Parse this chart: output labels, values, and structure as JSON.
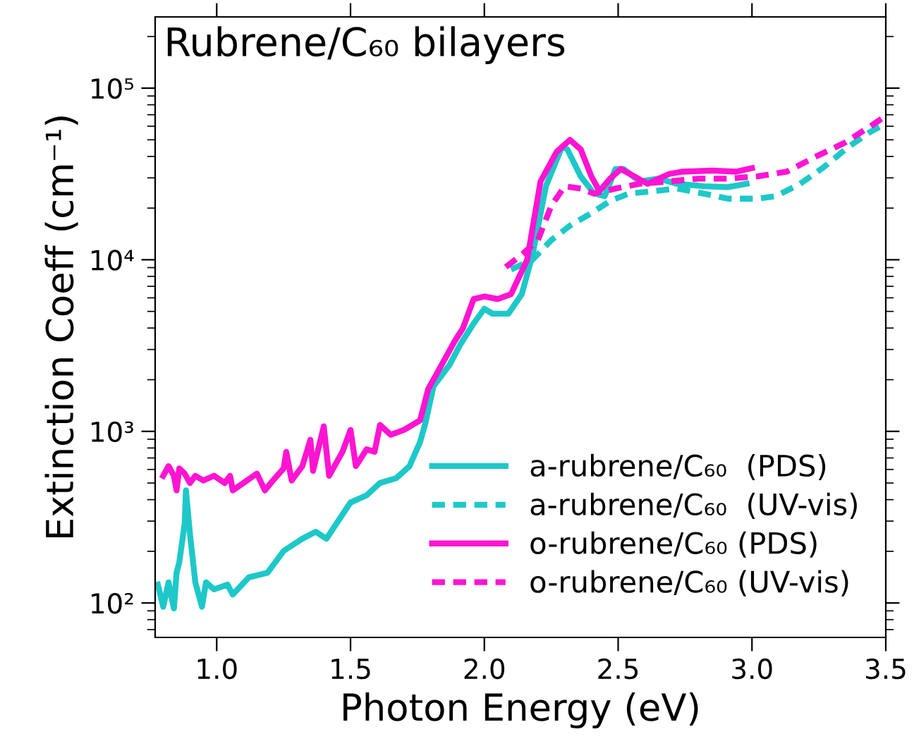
{
  "chart_data": {
    "type": "line",
    "title": "Rubrene/C₆₀ bilayers",
    "xlabel": "Photon Energy (eV)",
    "ylabel": "Extinction Coeff (cm⁻¹)",
    "log": "y",
    "xlim": [
      0.77,
      3.5
    ],
    "ylim": [
      63,
      260000
    ],
    "xticks": [
      {
        "value": 1,
        "label": "1.0"
      },
      {
        "value": 1.5,
        "label": "1.5"
      },
      {
        "value": 2,
        "label": "2.0"
      },
      {
        "value": 2.5,
        "label": "2.5"
      },
      {
        "value": 3,
        "label": "3.0"
      },
      {
        "value": 3.5,
        "label": "3.5"
      }
    ],
    "yticks": [
      {
        "value": 100,
        "label": "10²"
      },
      {
        "value": 1000,
        "label": "10³"
      },
      {
        "value": 10000,
        "label": "10⁴"
      },
      {
        "value": 100000,
        "label": "10⁵"
      }
    ],
    "grid": false,
    "legend": "bottom right",
    "series": [
      {
        "name": "a-rubrene/C₆₀  (PDS)",
        "color": "#1ec8c8",
        "line_style": "solid",
        "x": [
          0.78,
          0.8,
          0.82,
          0.84,
          0.85,
          0.86,
          0.88,
          0.885,
          0.9,
          0.92,
          0.945,
          0.96,
          0.99,
          1.04,
          1.06,
          1.12,
          1.19,
          1.25,
          1.32,
          1.37,
          1.41,
          1.47,
          1.5,
          1.56,
          1.61,
          1.67,
          1.72,
          1.76,
          1.78,
          1.81,
          1.87,
          1.91,
          1.96,
          2.0,
          2.03,
          2.09,
          2.14,
          2.18,
          2.23,
          2.29,
          2.31,
          2.36,
          2.41,
          2.45,
          2.49,
          2.52,
          2.58,
          2.65,
          2.72,
          2.82,
          2.91,
          2.98
        ],
        "values": [
          128,
          95,
          132,
          93,
          150,
          172,
          288,
          453,
          253,
          132,
          95,
          132,
          120,
          128,
          112,
          141,
          150,
          201,
          237,
          260,
          237,
          328,
          385,
          424,
          500,
          533,
          625,
          868,
          1120,
          1830,
          2440,
          3200,
          4250,
          5180,
          4850,
          4850,
          6310,
          10700,
          26800,
          45400,
          44000,
          30600,
          24300,
          23500,
          33800,
          33800,
          28600,
          29700,
          27700,
          26800,
          26500,
          27700
        ]
      },
      {
        "name": "a-rubrene/C₆₀  (UV-vis)",
        "color": "#1ec8c8",
        "line_style": "dashed",
        "x": [
          2.1,
          2.18,
          2.25,
          2.32,
          2.4,
          2.47,
          2.54,
          2.63,
          2.72,
          2.82,
          2.91,
          3.02,
          3.09,
          3.18,
          3.27,
          3.36,
          3.44,
          3.49
        ],
        "values": [
          8770,
          10000,
          13000,
          15800,
          18700,
          22000,
          24300,
          25100,
          26000,
          24300,
          22700,
          22700,
          23500,
          27700,
          34800,
          45400,
          55300,
          61000
        ]
      },
      {
        "name": "o-rubrene/C₆₀ (PDS)",
        "color": "#ff14d2",
        "line_style": "solid",
        "x": [
          0.8,
          0.82,
          0.84,
          0.85,
          0.86,
          0.88,
          0.9,
          0.92,
          0.95,
          0.99,
          1.03,
          1.05,
          1.06,
          1.1,
          1.15,
          1.18,
          1.21,
          1.25,
          1.26,
          1.28,
          1.32,
          1.35,
          1.36,
          1.4,
          1.42,
          1.47,
          1.5,
          1.52,
          1.56,
          1.59,
          1.61,
          1.65,
          1.7,
          1.76,
          1.79,
          1.89,
          1.92,
          1.96,
          2.0,
          2.05,
          2.1,
          2.16,
          2.21,
          2.27,
          2.32,
          2.36,
          2.4,
          2.43,
          2.47,
          2.51,
          2.56,
          2.61,
          2.69,
          2.74,
          2.85,
          2.94,
          3.0
        ],
        "values": [
          551,
          627,
          551,
          453,
          608,
          568,
          500,
          551,
          517,
          551,
          500,
          551,
          453,
          500,
          568,
          453,
          517,
          608,
          760,
          517,
          627,
          893,
          589,
          1070,
          551,
          760,
          1020,
          627,
          786,
          760,
          1090,
          955,
          1020,
          1160,
          1760,
          3370,
          3990,
          5900,
          6110,
          5900,
          6310,
          10000,
          28600,
          42500,
          50000,
          44000,
          30600,
          25100,
          29700,
          33800,
          30600,
          27700,
          31600,
          32600,
          33100,
          32600,
          34200
        ]
      },
      {
        "name": "o-rubrene/C₆₀ (UV-vis)",
        "color": "#ff14d2",
        "line_style": "dashed",
        "x": [
          2.08,
          2.14,
          2.2,
          2.25,
          2.3,
          2.36,
          2.41,
          2.49,
          2.58,
          2.69,
          2.8,
          2.91,
          3.02,
          3.13,
          3.24,
          3.35,
          3.45,
          3.49
        ],
        "values": [
          9060,
          10700,
          13000,
          20600,
          26800,
          26000,
          24300,
          26000,
          27700,
          28600,
          29700,
          29700,
          30600,
          32600,
          40000,
          48400,
          61000,
          67300
        ]
      }
    ]
  }
}
